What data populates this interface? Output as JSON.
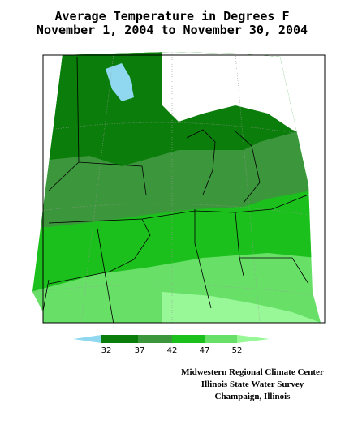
{
  "title": [
    "Average Temperature in Degrees F",
    "November 1, 2004 to November 30, 2004"
  ],
  "legend": {
    "labels": [
      "32",
      "37",
      "42",
      "47",
      "52"
    ]
  },
  "credits": [
    "Midwestern Regional Climate Center",
    "Illinois State Water Survey",
    "Champaign, Illinois"
  ]
}
